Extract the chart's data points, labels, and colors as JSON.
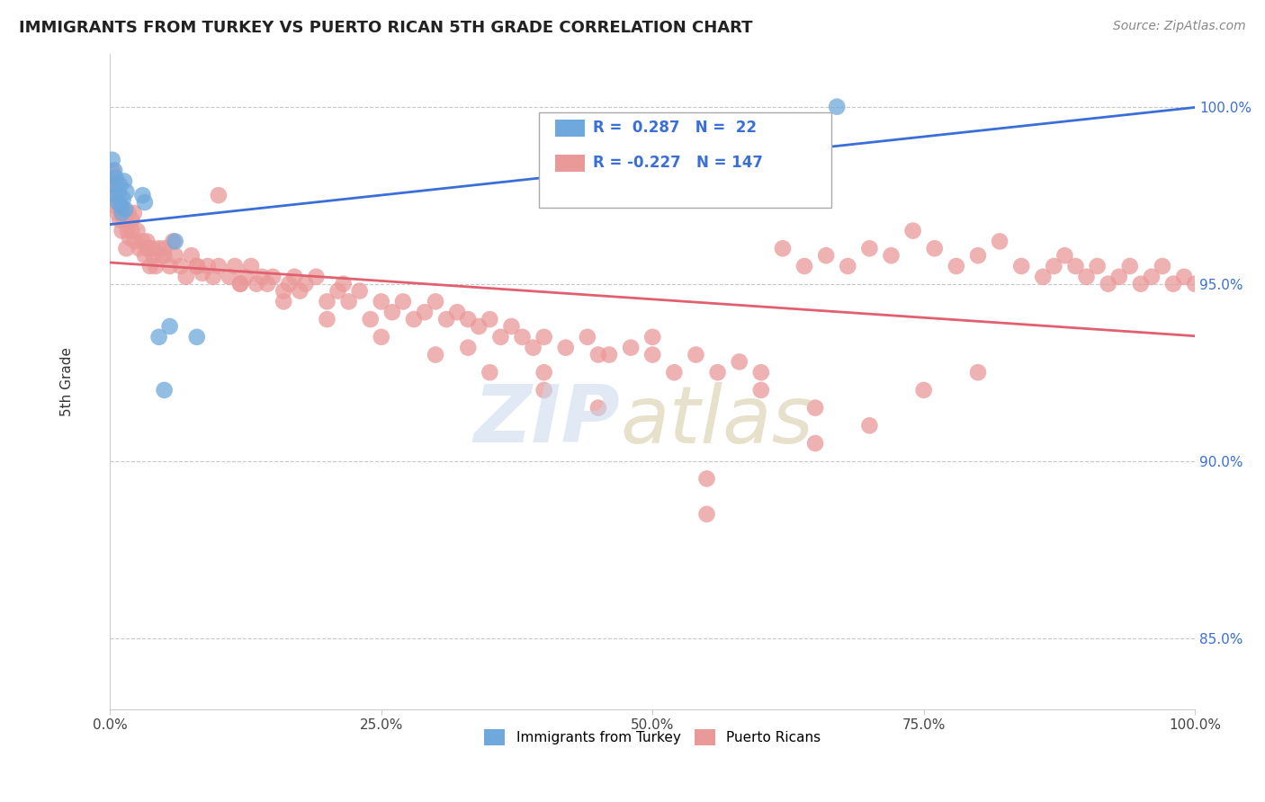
{
  "title": "IMMIGRANTS FROM TURKEY VS PUERTO RICAN 5TH GRADE CORRELATION CHART",
  "source": "Source: ZipAtlas.com",
  "ylabel": "5th Grade",
  "legend_blue_label": "Immigrants from Turkey",
  "legend_pink_label": "Puerto Ricans",
  "blue_R": 0.287,
  "blue_N": 22,
  "pink_R": -0.227,
  "pink_N": 147,
  "ymin": 83.0,
  "ymax": 101.5,
  "xmin": 0.0,
  "xmax": 1.0,
  "blue_color": "#6fa8dc",
  "pink_color": "#ea9999",
  "blue_line_color": "#3a6fd8",
  "pink_line_color": "#e06070",
  "grid_color": "#c8c8c8",
  "background_color": "#ffffff",
  "blue_scatter_x": [
    0.002,
    0.003,
    0.004,
    0.005,
    0.006,
    0.007,
    0.008,
    0.009,
    0.01,
    0.011,
    0.012,
    0.013,
    0.014,
    0.015,
    0.03,
    0.032,
    0.045,
    0.05,
    0.055,
    0.06,
    0.08,
    0.67
  ],
  "blue_scatter_y": [
    98.5,
    97.8,
    98.2,
    98.0,
    97.5,
    97.3,
    97.6,
    97.8,
    97.2,
    97.0,
    97.4,
    97.9,
    97.1,
    97.6,
    97.5,
    97.3,
    93.5,
    92.0,
    93.8,
    96.2,
    93.5,
    100.0
  ],
  "pink_scatter_x": [
    0.001,
    0.002,
    0.004,
    0.006,
    0.007,
    0.008,
    0.009,
    0.01,
    0.011,
    0.012,
    0.013,
    0.015,
    0.016,
    0.017,
    0.018,
    0.02,
    0.022,
    0.023,
    0.025,
    0.027,
    0.03,
    0.032,
    0.034,
    0.035,
    0.037,
    0.039,
    0.04,
    0.042,
    0.045,
    0.048,
    0.05,
    0.055,
    0.058,
    0.06,
    0.065,
    0.07,
    0.075,
    0.08,
    0.085,
    0.09,
    0.095,
    0.1,
    0.11,
    0.115,
    0.12,
    0.125,
    0.13,
    0.135,
    0.14,
    0.145,
    0.15,
    0.16,
    0.165,
    0.17,
    0.175,
    0.18,
    0.19,
    0.2,
    0.21,
    0.215,
    0.22,
    0.23,
    0.24,
    0.25,
    0.26,
    0.27,
    0.28,
    0.29,
    0.3,
    0.31,
    0.32,
    0.33,
    0.34,
    0.35,
    0.36,
    0.37,
    0.38,
    0.39,
    0.4,
    0.42,
    0.44,
    0.46,
    0.48,
    0.5,
    0.52,
    0.54,
    0.56,
    0.58,
    0.6,
    0.62,
    0.64,
    0.66,
    0.68,
    0.7,
    0.72,
    0.74,
    0.76,
    0.78,
    0.8,
    0.82,
    0.84,
    0.86,
    0.87,
    0.88,
    0.89,
    0.9,
    0.91,
    0.92,
    0.93,
    0.94,
    0.95,
    0.96,
    0.97,
    0.98,
    0.99,
    1.0,
    0.003,
    0.005,
    0.02,
    0.035,
    0.05,
    0.08,
    0.12,
    0.16,
    0.2,
    0.25,
    0.3,
    0.35,
    0.4,
    0.45,
    0.5,
    0.6,
    0.65,
    0.7,
    0.75,
    0.8,
    0.1,
    0.45,
    0.33,
    0.55,
    0.65,
    0.4,
    0.55
  ],
  "pink_scatter_y": [
    97.8,
    98.2,
    97.5,
    97.8,
    97.0,
    97.3,
    96.8,
    97.2,
    96.5,
    97.0,
    96.8,
    96.0,
    96.5,
    97.0,
    96.3,
    96.5,
    97.0,
    96.2,
    96.5,
    96.0,
    96.2,
    95.8,
    96.2,
    96.0,
    95.5,
    96.0,
    95.8,
    95.5,
    96.0,
    95.8,
    96.0,
    95.5,
    96.2,
    95.8,
    95.5,
    95.2,
    95.8,
    95.5,
    95.3,
    95.5,
    95.2,
    95.5,
    95.2,
    95.5,
    95.0,
    95.2,
    95.5,
    95.0,
    95.2,
    95.0,
    95.2,
    94.8,
    95.0,
    95.2,
    94.8,
    95.0,
    95.2,
    94.5,
    94.8,
    95.0,
    94.5,
    94.8,
    94.0,
    94.5,
    94.2,
    94.5,
    94.0,
    94.2,
    94.5,
    94.0,
    94.2,
    94.0,
    93.8,
    94.0,
    93.5,
    93.8,
    93.5,
    93.2,
    93.5,
    93.2,
    93.5,
    93.0,
    93.2,
    93.0,
    92.5,
    93.0,
    92.5,
    92.8,
    92.5,
    96.0,
    95.5,
    95.8,
    95.5,
    96.0,
    95.8,
    96.5,
    96.0,
    95.5,
    95.8,
    96.2,
    95.5,
    95.2,
    95.5,
    95.8,
    95.5,
    95.2,
    95.5,
    95.0,
    95.2,
    95.5,
    95.0,
    95.2,
    95.5,
    95.0,
    95.2,
    95.0,
    98.0,
    97.2,
    96.8,
    96.0,
    95.8,
    95.5,
    95.0,
    94.5,
    94.0,
    93.5,
    93.0,
    92.5,
    92.5,
    93.0,
    93.5,
    92.0,
    91.5,
    91.0,
    92.0,
    92.5,
    97.5,
    91.5,
    93.2,
    89.5,
    90.5,
    92.0,
    88.5
  ]
}
